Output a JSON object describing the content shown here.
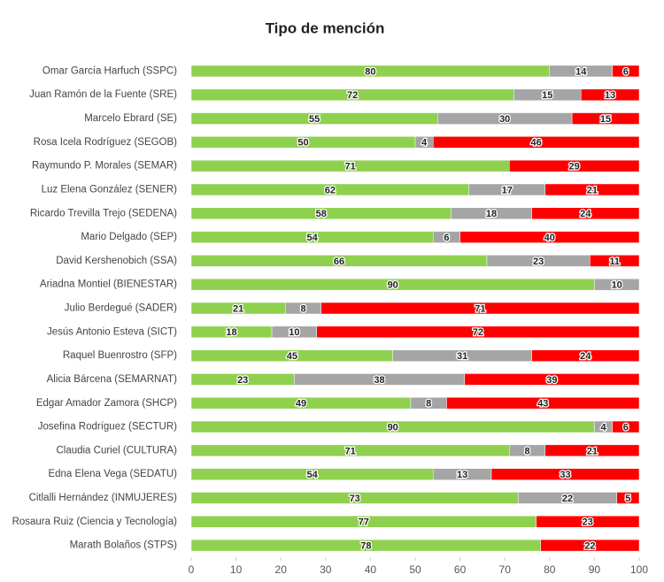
{
  "chart_data": {
    "type": "stacked-bar-horizontal",
    "title": "Tipo de mención",
    "categories": [
      "Omar García Harfuch (SSPC)",
      "Juan Ramón de la Fuente (SRE)",
      "Marcelo Ebrard (SE)",
      "Rosa Icela Rodríguez (SEGOB)",
      "Raymundo P. Morales (SEMAR)",
      "Luz Elena González (SENER)",
      "Ricardo Trevilla Trejo (SEDENA)",
      "Mario Delgado (SEP)",
      "David Kershenobich (SSA)",
      "Ariadna Montiel (BIENESTAR)",
      "Julio Berdegué (SADER)",
      "Jesús Antonio Esteva (SICT)",
      "Raquel Buenrostro (SFP)",
      "Alicia Bárcena (SEMARNAT)",
      "Edgar Amador Zamora (SHCP)",
      "Josefina Rodríguez (SECTUR)",
      "Claudia Curiel (CULTURA)",
      "Edna Elena Vega (SEDATU)",
      "Citlalli Hernández (INMUJERES)",
      "Rosaura Ruiz (Ciencia y Tecnología)",
      "Marath Bolaños (STPS)"
    ],
    "series": [
      {
        "color": "#8fd14f",
        "values": [
          80,
          72,
          55,
          50,
          71,
          62,
          58,
          54,
          66,
          90,
          21,
          18,
          45,
          23,
          49,
          90,
          71,
          54,
          73,
          77,
          78
        ]
      },
      {
        "color": "#a5a5a5",
        "values": [
          14,
          15,
          30,
          4,
          null,
          17,
          18,
          6,
          23,
          10,
          8,
          10,
          31,
          38,
          8,
          4,
          8,
          13,
          22,
          null,
          null
        ]
      },
      {
        "color": "#ff0000",
        "values": [
          6,
          13,
          15,
          46,
          29,
          21,
          24,
          40,
          11,
          null,
          71,
          72,
          24,
          39,
          43,
          6,
          21,
          33,
          5,
          23,
          22
        ]
      }
    ],
    "xlim": [
      0,
      100
    ],
    "xticks": [
      0,
      10,
      20,
      30,
      40,
      50,
      60,
      70,
      80,
      90,
      100
    ]
  }
}
